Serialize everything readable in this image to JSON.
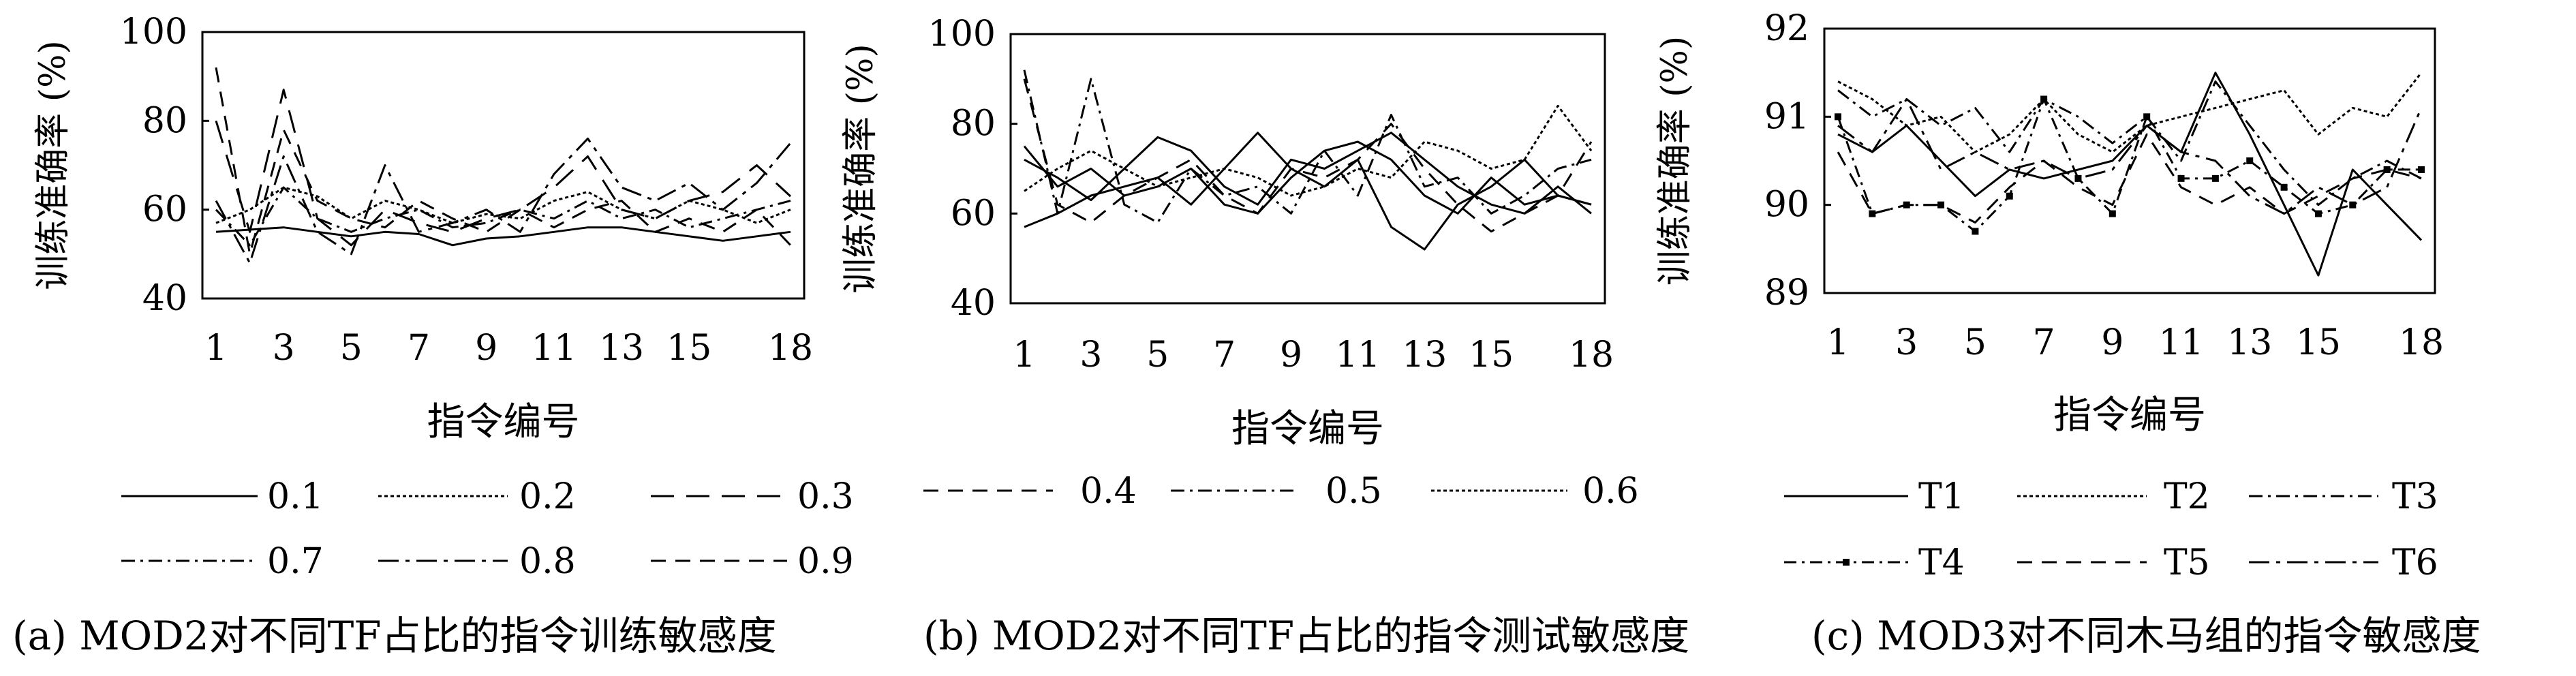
{
  "chart_data": [
    {
      "id": "a",
      "type": "line",
      "caption": "(a)  MOD2对不同TF占比的指令训练敏感度",
      "xlabel": "指令编号",
      "ylabel": "训练准确率 (%)",
      "ylim": [
        40,
        100
      ],
      "yticks": [
        40,
        60,
        80,
        100
      ],
      "xticks": [
        "1",
        "3",
        "5",
        "7",
        "9",
        "11",
        "13",
        "15",
        "18"
      ],
      "x": [
        1,
        2,
        3,
        4,
        5,
        6,
        7,
        8,
        9,
        10,
        11,
        12,
        13,
        14,
        15,
        16,
        17,
        18
      ],
      "grid": false,
      "legend_position": "bottom",
      "series": [
        {
          "name": "0.1",
          "style": "solid",
          "values": [
            55,
            55.5,
            56,
            55,
            54,
            55,
            54.5,
            52,
            53.5,
            54,
            55,
            56,
            56,
            55,
            54,
            53,
            54,
            55
          ]
        },
        {
          "name": "0.2",
          "style": "densedash",
          "values": [
            57,
            60,
            65,
            63,
            58,
            62,
            60,
            57,
            59,
            58,
            62,
            64,
            60,
            58,
            62,
            60,
            57,
            60
          ]
        },
        {
          "name": "0.3",
          "style": "longdash",
          "values": [
            80,
            55,
            87,
            58,
            52,
            60,
            57,
            55,
            58,
            60,
            65,
            72,
            60,
            58,
            62,
            64,
            70,
            63
          ]
        },
        {
          "name": "0.7",
          "style": "dashdot",
          "values": [
            60,
            52,
            65,
            58,
            55,
            58,
            60,
            56,
            57,
            60,
            58,
            62,
            58,
            60,
            56,
            58,
            60,
            62
          ]
        },
        {
          "name": "0.8",
          "style": "dashdotlong",
          "values": [
            62,
            48,
            72,
            55,
            50,
            70,
            55,
            57,
            60,
            55,
            68,
            76,
            65,
            62,
            66,
            60,
            66,
            75
          ]
        },
        {
          "name": "0.9",
          "style": "dash",
          "values": [
            92,
            50,
            78,
            62,
            58,
            56,
            62,
            58,
            55,
            60,
            56,
            60,
            62,
            55,
            58,
            55,
            60,
            52
          ]
        }
      ]
    },
    {
      "id": "b",
      "type": "line",
      "caption": "(b) MOD2对不同TF占比的指令测试敏感度",
      "xlabel": "指令编号",
      "ylabel": "训练准确率 (%)",
      "ylim": [
        40,
        100
      ],
      "yticks": [
        40,
        60,
        80,
        100
      ],
      "xticks": [
        "1",
        "3",
        "5",
        "7",
        "9",
        "11",
        "13",
        "15",
        "18"
      ],
      "x": [
        1,
        2,
        3,
        4,
        5,
        6,
        7,
        8,
        9,
        10,
        11,
        12,
        13,
        14,
        15,
        16,
        17,
        18
      ],
      "grid": false,
      "legend_position": "bottom",
      "series": [
        {
          "name": "0.1",
          "style": "solid",
          "values": [
            57,
            60,
            64,
            66,
            68,
            62,
            70,
            78,
            70,
            66,
            72,
            57,
            52,
            62,
            66,
            72,
            64,
            62
          ]
        },
        {
          "name": "0.2",
          "style": "solid",
          "values": [
            72,
            68,
            63,
            70,
            77,
            74,
            66,
            62,
            72,
            70,
            74,
            78,
            72,
            66,
            62,
            60,
            66,
            60
          ]
        },
        {
          "name": "0.3",
          "style": "solid",
          "values": [
            75,
            66,
            70,
            64,
            66,
            70,
            62,
            60,
            68,
            74,
            76,
            72,
            64,
            60,
            68,
            62,
            64,
            62
          ]
        },
        {
          "name": "0.4",
          "style": "dash",
          "values": [
            90,
            62,
            58,
            64,
            68,
            72,
            64,
            60,
            70,
            68,
            72,
            80,
            70,
            62,
            56,
            60,
            64,
            76
          ]
        },
        {
          "name": "0.5",
          "style": "dashdot",
          "values": [
            92,
            60,
            90,
            62,
            58,
            70,
            64,
            66,
            60,
            74,
            64,
            82,
            66,
            68,
            60,
            64,
            70,
            72
          ]
        },
        {
          "name": "0.6",
          "style": "densedash",
          "values": [
            65,
            70,
            74,
            70,
            66,
            68,
            70,
            68,
            64,
            66,
            70,
            68,
            76,
            74,
            70,
            72,
            84,
            74
          ]
        }
      ]
    },
    {
      "id": "c",
      "type": "line",
      "caption": "(c) MOD3对不同木马组的指令敏感度",
      "xlabel": "指令编号",
      "ylabel": "训练准确率 (%)",
      "ylim": [
        89,
        92
      ],
      "yticks": [
        89,
        90,
        91,
        92
      ],
      "xticks": [
        "1",
        "3",
        "5",
        "7",
        "9",
        "11",
        "13",
        "15",
        "18"
      ],
      "x": [
        1,
        2,
        3,
        4,
        5,
        6,
        7,
        8,
        9,
        10,
        11,
        12,
        13,
        14,
        15,
        16,
        17,
        18
      ],
      "grid": false,
      "legend_position": "bottom",
      "series": [
        {
          "name": "T1",
          "style": "solid",
          "values": [
            90.8,
            90.6,
            90.9,
            90.5,
            90.1,
            90.4,
            90.3,
            90.4,
            90.5,
            90.9,
            90.6,
            91.5,
            90.8,
            90.0,
            89.2,
            90.4,
            90.0,
            89.6
          ]
        },
        {
          "name": "T2",
          "style": "densedash",
          "values": [
            91.4,
            91.2,
            90.9,
            91.0,
            90.6,
            90.8,
            91.2,
            90.8,
            90.6,
            90.9,
            91.0,
            91.1,
            91.2,
            91.3,
            90.8,
            91.1,
            91.0,
            91.5
          ]
        },
        {
          "name": "T3",
          "style": "dashdot",
          "values": [
            91.3,
            91.0,
            91.2,
            90.9,
            91.1,
            90.6,
            91.2,
            91.0,
            90.7,
            91.0,
            90.5,
            91.4,
            90.9,
            90.4,
            90.0,
            90.3,
            90.5,
            90.3
          ]
        },
        {
          "name": "T4",
          "style": "dashdotmarker",
          "values": [
            91.0,
            89.9,
            90.0,
            90.0,
            89.7,
            90.1,
            91.2,
            90.3,
            89.9,
            91.0,
            90.3,
            90.3,
            90.5,
            90.2,
            89.9,
            90.0,
            90.4,
            90.4
          ]
        },
        {
          "name": "T5",
          "style": "dash",
          "values": [
            90.6,
            89.9,
            90.0,
            90.0,
            89.8,
            90.2,
            90.5,
            90.2,
            90.0,
            90.8,
            90.2,
            90.0,
            90.2,
            89.9,
            90.1,
            90.3,
            90.4,
            90.3
          ]
        },
        {
          "name": "T6",
          "style": "dashdotlong",
          "values": [
            90.9,
            90.6,
            91.2,
            90.4,
            90.6,
            90.4,
            90.5,
            90.3,
            90.4,
            90.9,
            90.6,
            90.5,
            90.1,
            89.9,
            90.2,
            90.0,
            90.2,
            91.1
          ]
        }
      ]
    }
  ],
  "legends": {
    "a_row1": [
      "0.1",
      "0.2",
      "0.3"
    ],
    "a_row2": [
      "0.7",
      "0.8",
      "0.9"
    ],
    "b_row": [
      "0.4",
      "0.5",
      "0.6"
    ],
    "c_row1": [
      "T1",
      "T2",
      "T3"
    ],
    "c_row2": [
      "T4",
      "T5",
      "T6"
    ]
  }
}
